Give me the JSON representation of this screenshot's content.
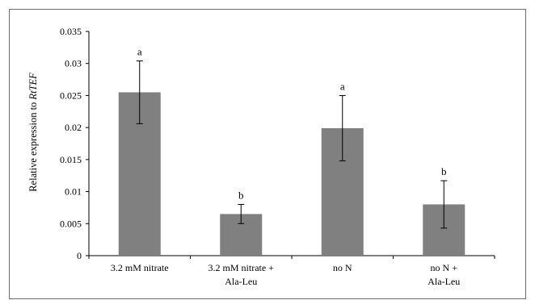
{
  "chart_data": {
    "type": "bar",
    "title": "",
    "xlabel": "",
    "ylabel": "Relative expression to ",
    "ylabel_gene": "RtTEF",
    "ylim": [
      0,
      0.035
    ],
    "yticks": [
      "0",
      "0.005",
      "0.01",
      "0.015",
      "0.02",
      "0.025",
      "0.03",
      "0.035"
    ],
    "categories": [
      [
        "3.2 mM nitrate"
      ],
      [
        "3.2 mM nitrate  +",
        "Ala-Leu"
      ],
      [
        "no N"
      ],
      [
        "no N +",
        "Ala-Leu"
      ]
    ],
    "values": [
      0.0255,
      0.0065,
      0.0199,
      0.008
    ],
    "errors": [
      0.0049,
      0.0015,
      0.0051,
      0.0037
    ],
    "significance": [
      "a",
      "b",
      "a",
      "b"
    ],
    "bar_color": "#808080",
    "grid": false,
    "legend": "none"
  }
}
